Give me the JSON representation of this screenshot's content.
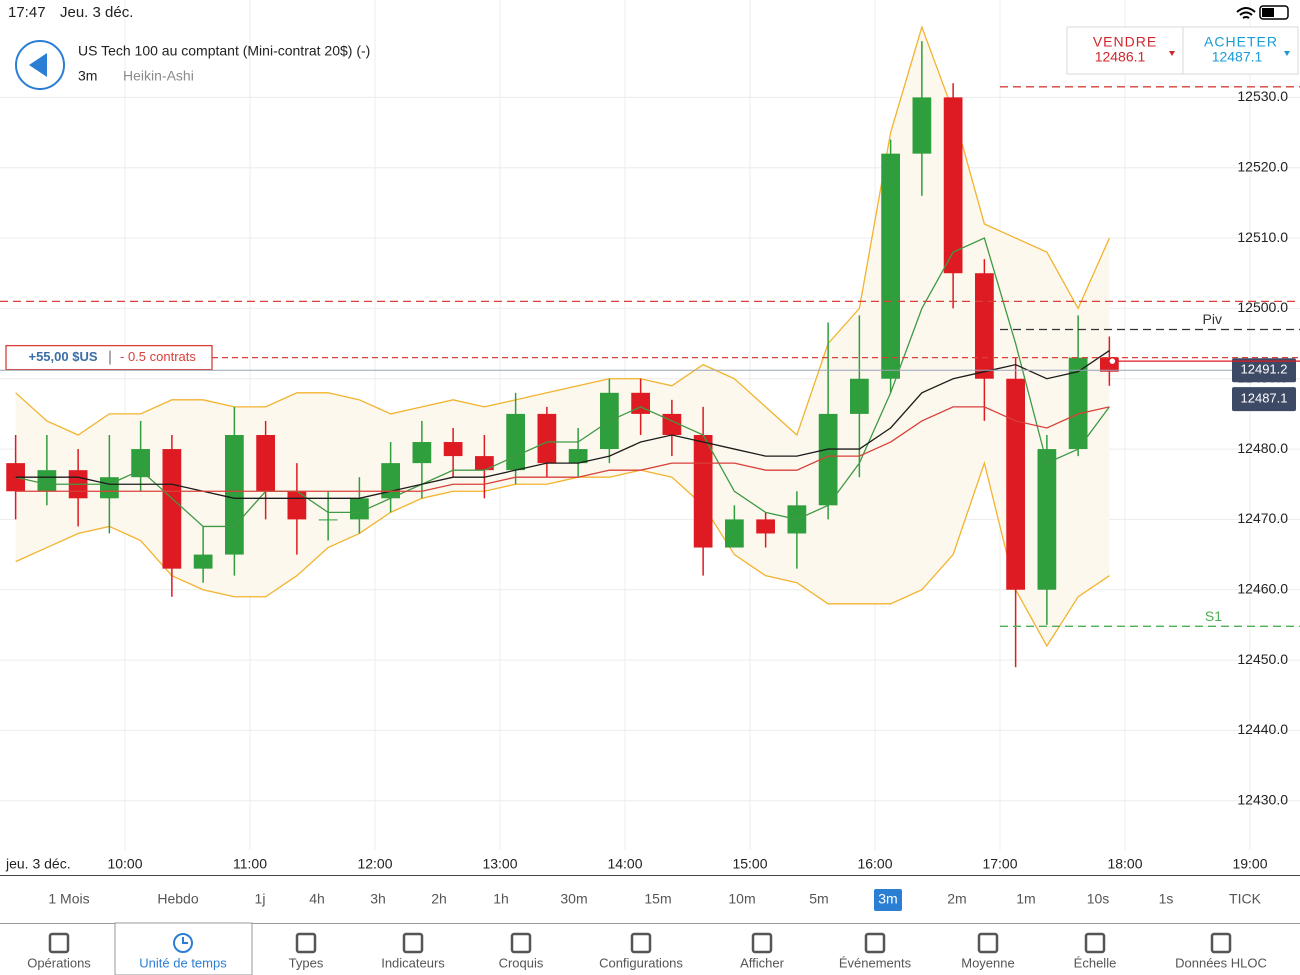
{
  "status": {
    "time": "17:47",
    "date": "Jeu. 3 déc."
  },
  "header": {
    "title": "US Tech 100 au comptant (Mini-contrat 20$) (-)",
    "interval": "3m",
    "style": "Heikin-Ashi"
  },
  "quote": {
    "sell_label": "VENDRE",
    "sell": 12486.1,
    "buy_label": "ACHETER",
    "buy": 12487.1
  },
  "chart_data": {
    "type": "candlestick",
    "x_date_label": "jeu. 3 déc.",
    "x": [
      540,
      555,
      570,
      585,
      600,
      615,
      630,
      645,
      660,
      675,
      690,
      705,
      720,
      735,
      750,
      765,
      780,
      795,
      810,
      825,
      840,
      855,
      870,
      885,
      900,
      915,
      930,
      945,
      960,
      975,
      990,
      1005,
      1020,
      1035,
      1050,
      1065
    ],
    "open": [
      12478,
      12474,
      12477,
      12473,
      12476,
      12480,
      12463,
      12465,
      12482,
      12474,
      12470,
      12470,
      12473,
      12478,
      12481,
      12479,
      12477,
      12485,
      12478,
      12480,
      12488,
      12485,
      12482,
      12466,
      12470,
      12468,
      12472,
      12485,
      12490,
      12522,
      12530,
      12505,
      12490,
      12460,
      12480,
      12493
    ],
    "high": [
      12482,
      12482,
      12480,
      12482,
      12484,
      12482,
      12469,
      12486,
      12484,
      12478,
      12474,
      12476,
      12481,
      12484,
      12483,
      12482,
      12488,
      12486,
      12483,
      12490,
      12490,
      12487,
      12486,
      12472,
      12471,
      12474,
      12498,
      12499,
      12524,
      12538,
      12532,
      12507,
      12493,
      12482,
      12499,
      12496
    ],
    "low": [
      12470,
      12472,
      12469,
      12468,
      12474,
      12459,
      12461,
      12462,
      12470,
      12465,
      12467,
      12468,
      12471,
      12473,
      12476,
      12473,
      12475,
      12476,
      12476,
      12478,
      12482,
      12479,
      12462,
      12467,
      12466,
      12463,
      12470,
      12476,
      12488,
      12516,
      12500,
      12484,
      12449,
      12455,
      12479,
      12489
    ],
    "close": [
      12474,
      12477,
      12473,
      12476,
      12480,
      12463,
      12465,
      12482,
      12474,
      12470,
      12470,
      12473,
      12478,
      12481,
      12479,
      12477,
      12485,
      12478,
      12480,
      12488,
      12485,
      12482,
      12466,
      12470,
      12468,
      12472,
      12485,
      12490,
      12522,
      12530,
      12505,
      12490,
      12460,
      12480,
      12493,
      12491
    ],
    "up_color": "#2f9e3c",
    "down_color": "#de1a22",
    "band": {
      "color": "#f2b32e",
      "fill": "#fdf8ee",
      "upper": [
        12488,
        12484,
        12482,
        12485,
        12485,
        12487,
        12487,
        12486,
        12486,
        12488,
        12488,
        12487,
        12485,
        12486,
        12487,
        12486,
        12487,
        12488,
        12489,
        12490,
        12490,
        12489,
        12492,
        12490,
        12486,
        12482,
        12495,
        12500,
        12525,
        12540,
        12528,
        12512,
        12510,
        12508,
        12500,
        12510
      ],
      "lower": [
        12464,
        12466,
        12468,
        12469,
        12467,
        12462,
        12460,
        12459,
        12459,
        12462,
        12466,
        12468,
        12471,
        12473,
        12474,
        12474,
        12475,
        12475,
        12476,
        12476,
        12477,
        12476,
        12472,
        12465,
        12462,
        12461,
        12458,
        12458,
        12458,
        12460,
        12465,
        12478,
        12460,
        12452,
        12459,
        12462
      ]
    },
    "lines": [
      {
        "color": "#3e9a45",
        "values": [
          12476,
          12475,
          12475,
          12475,
          12477,
          12473,
          12469,
          12469,
          12474,
          12474,
          12471,
          12471,
          12473,
          12475,
          12477,
          12477,
          12479,
          12481,
          12481,
          12484,
          12486,
          12484,
          12482,
          12474,
          12471,
          12470,
          12472,
          12478,
          12488,
          12500,
          12508,
          12510,
          12495,
          12478,
          12480,
          12486
        ]
      },
      {
        "color": "#1c1c1c",
        "values": [
          12476,
          12476,
          12476,
          12475,
          12475,
          12475,
          12474,
          12473,
          12473,
          12473,
          12473,
          12473,
          12474,
          12475,
          12476,
          12476,
          12477,
          12478,
          12478,
          12479,
          12481,
          12482,
          12481,
          12480,
          12479,
          12479,
          12480,
          12480,
          12483,
          12488,
          12490,
          12491,
          12492,
          12490,
          12491,
          12494
        ]
      },
      {
        "color": "#d9403a",
        "values": [
          12474,
          12474,
          12474,
          12474,
          12474,
          12474,
          12474,
          12474,
          12474,
          12474,
          12474,
          12474,
          12474,
          12474,
          12475,
          12475,
          12476,
          12476,
          12476,
          12477,
          12477,
          12478,
          12478,
          12478,
          12477,
          12477,
          12479,
          12479,
          12481,
          12484,
          12486,
          12486,
          12484,
          12483,
          12485,
          12486
        ]
      }
    ],
    "levels": [
      {
        "value": 12531.5,
        "color": "#d9403a",
        "start": 1020
      },
      {
        "value": 12501,
        "color": "#d9403a"
      },
      {
        "value": 12497,
        "color": "#333333",
        "start": 1020,
        "label": "Piv"
      },
      {
        "value": 12454.8,
        "color": "#4caf50",
        "start": 1020,
        "label": "S1"
      }
    ],
    "position": {
      "value": 12493,
      "pnl": "+55,00 $US",
      "size": "- 0.5 contrats",
      "color": "#d9403a"
    },
    "last_price": 12492.5,
    "price_tags": [
      12491.2,
      12487.1
    ],
    "xlim": [
      540,
      1164
    ],
    "xticks": [
      {
        "value": 600,
        "label": "10:00"
      },
      {
        "value": 660,
        "label": "11:00"
      },
      {
        "value": 720,
        "label": "12:00"
      },
      {
        "value": 780,
        "label": "13:00"
      },
      {
        "value": 840,
        "label": "14:00"
      },
      {
        "value": 900,
        "label": "15:00"
      },
      {
        "value": 960,
        "label": "16:00"
      },
      {
        "value": 1020,
        "label": "17:00"
      },
      {
        "value": 1080,
        "label": "18:00"
      },
      {
        "value": 1140,
        "label": "19:00"
      }
    ],
    "ylim": [
      12423,
      12541
    ],
    "yticks": [
      {
        "value": 12430,
        "label": "12430.0"
      },
      {
        "value": 12440,
        "label": "12440.0"
      },
      {
        "value": 12450,
        "label": "12450.0"
      },
      {
        "value": 12460,
        "label": "12460.0"
      },
      {
        "value": 12470,
        "label": "12470.0"
      },
      {
        "value": 12480,
        "label": "12480.0"
      },
      {
        "value": 12490,
        "label": "12490.0"
      },
      {
        "value": 12500,
        "label": "12500.0"
      },
      {
        "value": 12510,
        "label": "12510.0"
      },
      {
        "value": 12520,
        "label": "12520.0"
      },
      {
        "value": 12530,
        "label": "12530.0"
      }
    ],
    "grid": true
  },
  "timeframes": {
    "items": [
      "1 Mois",
      "Hebdo",
      "1j",
      "4h",
      "3h",
      "2h",
      "1h",
      "30m",
      "15m",
      "10m",
      "5m",
      "3m",
      "2m",
      "1m",
      "10s",
      "1s",
      "TICK"
    ],
    "selected": 11
  },
  "toolbar": {
    "items": [
      "Opérations",
      "Unité de temps",
      "Types",
      "Indicateurs",
      "Croquis",
      "Configurations",
      "Afficher",
      "Événements",
      "Moyenne",
      "Échelle",
      "Données HLOC"
    ],
    "active": 1
  }
}
